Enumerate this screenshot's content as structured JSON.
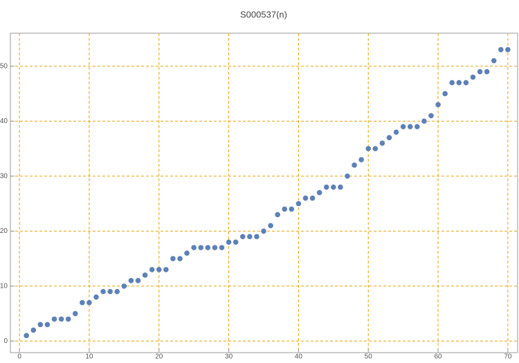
{
  "chart_data": {
    "type": "scatter",
    "title": "S000537(n)",
    "x": [
      1,
      2,
      3,
      4,
      5,
      6,
      7,
      8,
      9,
      10,
      11,
      12,
      13,
      14,
      15,
      16,
      17,
      18,
      19,
      20,
      21,
      22,
      23,
      24,
      25,
      26,
      27,
      28,
      29,
      30,
      31,
      32,
      33,
      34,
      35,
      36,
      37,
      38,
      39,
      40,
      41,
      42,
      43,
      44,
      45,
      46,
      47,
      48,
      49,
      50,
      51,
      52,
      53,
      54,
      55,
      56,
      57,
      58,
      59,
      60,
      61,
      62,
      63,
      64,
      65,
      66,
      67,
      68,
      69,
      70
    ],
    "values": [
      1,
      2,
      3,
      3,
      4,
      4,
      4,
      5,
      7,
      7,
      8,
      9,
      9,
      9,
      10,
      11,
      11,
      12,
      13,
      13,
      13,
      15,
      15,
      16,
      17,
      17,
      17,
      17,
      17,
      18,
      18,
      19,
      19,
      19,
      20,
      21,
      23,
      24,
      24,
      25,
      26,
      26,
      27,
      28,
      28,
      28,
      30,
      32,
      33,
      35,
      35,
      36,
      37,
      38,
      39,
      39,
      39,
      40,
      41,
      43,
      45,
      47,
      47,
      47,
      48,
      49,
      49,
      51,
      53,
      53
    ],
    "color": "#5e81b5",
    "xlim": [
      -1.3,
      71.4
    ],
    "ylim": [
      -2.1,
      56
    ],
    "xticks": [
      0,
      10,
      20,
      30,
      40,
      50,
      60,
      70
    ],
    "yticks": [
      0,
      10,
      20,
      30,
      40,
      50
    ],
    "grid": true,
    "grid_color": "#e69f00"
  }
}
